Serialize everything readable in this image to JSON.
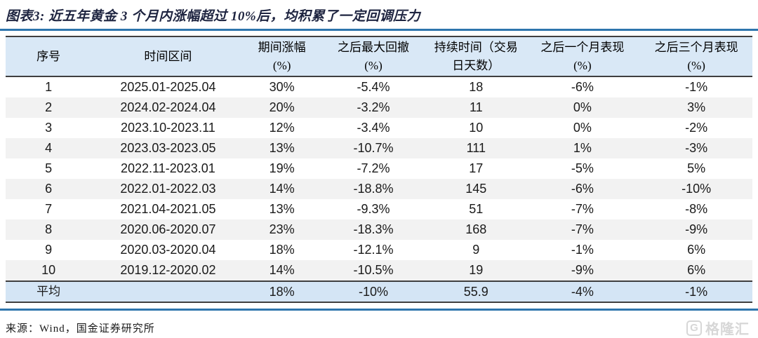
{
  "title": "图表3:  近五年黄金 3 个月内涨幅超过 10%后，均积累了一定回调压力",
  "table": {
    "headers": [
      {
        "lines": [
          "序号"
        ]
      },
      {
        "lines": [
          "时间区间"
        ]
      },
      {
        "lines": [
          "期间涨幅",
          "(%)"
        ]
      },
      {
        "lines": [
          "之后最大回撤",
          "(%)"
        ]
      },
      {
        "lines": [
          "持续时间（交易",
          "日天数）"
        ]
      },
      {
        "lines": [
          "之后一个月表现",
          "(%)"
        ]
      },
      {
        "lines": [
          "之后三个月表现",
          "(%)"
        ]
      }
    ],
    "rows": [
      [
        "1",
        "2025.01-2025.04",
        "30%",
        "-5.4%",
        "18",
        "-6%",
        "-1%"
      ],
      [
        "2",
        "2024.02-2024.04",
        "20%",
        "-3.2%",
        "11",
        "0%",
        "3%"
      ],
      [
        "3",
        "2023.10-2023.11",
        "12%",
        "-3.4%",
        "10",
        "0%",
        "-2%"
      ],
      [
        "4",
        "2023.03-2023.05",
        "13%",
        "-10.7%",
        "111",
        "1%",
        "-3%"
      ],
      [
        "5",
        "2022.11-2023.01",
        "19%",
        "-7.2%",
        "17",
        "-5%",
        "5%"
      ],
      [
        "6",
        "2022.01-2022.03",
        "14%",
        "-18.8%",
        "145",
        "-6%",
        "-10%"
      ],
      [
        "7",
        "2021.04-2021.05",
        "13%",
        "-9.3%",
        "51",
        "-7%",
        "-8%"
      ],
      [
        "8",
        "2020.06-2020.07",
        "23%",
        "-18.3%",
        "168",
        "-7%",
        "-9%"
      ],
      [
        "9",
        "2020.03-2020.04",
        "18%",
        "-12.1%",
        "9",
        "-1%",
        "6%"
      ],
      [
        "10",
        "2019.12-2020.02",
        "14%",
        "-10.5%",
        "19",
        "-9%",
        "6%"
      ]
    ],
    "average_row": [
      "平均",
      "",
      "18%",
      "-10%",
      "55.9",
      "-4%",
      "-1%"
    ]
  },
  "footer": {
    "source": "来源：Wind，国金证券研究所"
  },
  "watermark": {
    "icon": "G",
    "text": "格隆汇"
  },
  "colors": {
    "rule_blue": "#2e75ad",
    "header_bg": "#d9e8f6",
    "average_row_bg": "#d4e5f5",
    "stripe_bg": "#f2f2f2",
    "title_color": "#1e2440",
    "border_dark": "#3f3f3f",
    "watermark_gray": "#d7d7d7"
  }
}
